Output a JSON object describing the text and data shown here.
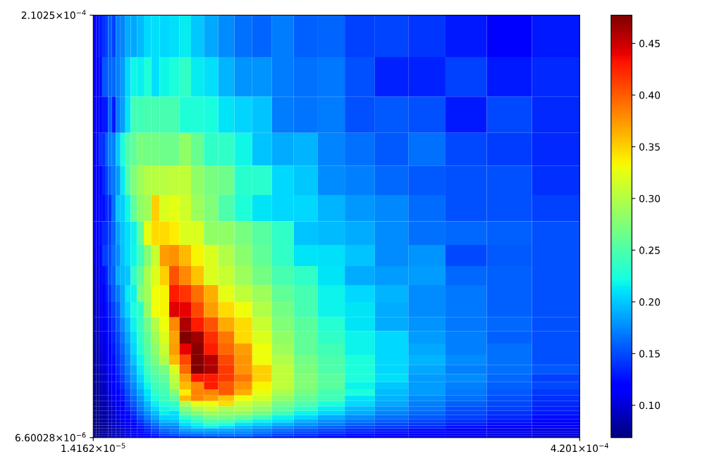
{
  "chart_data": {
    "type": "heatmap",
    "x": [
      1.54e-05,
      1.787e-05,
      2.037e-05,
      2.281e-05,
      2.517e-05,
      2.811e-05,
      3.134e-05,
      3.478e-05,
      3.881e-05,
      4.302e-05,
      4.781e-05,
      5.34e-05,
      5.929e-05,
      6.576e-05,
      7.341e-05,
      8.164e-05,
      9.067e-05,
      0.00010088,
      0.00011215,
      0.00012489,
      0.00013901,
      0.0001546,
      0.00017195,
      0.00019107,
      0.00021216,
      0.00023599,
      0.00026246,
      0.00029179,
      0.00032444,
      0.00036062,
      0.00039992
    ],
    "y": [
      0.00020004,
      0.0001801,
      0.00016178,
      0.00014521,
      0.00013028,
      0.00011688,
      0.00010483,
      9.414e-05,
      8.447e-05,
      7.582e-05,
      6.809e-05,
      6.113e-05,
      5.478e-05,
      4.914e-05,
      4.4e-05,
      3.936e-05,
      3.524e-05,
      3.151e-05,
      2.834e-05,
      2.55e-05,
      2.291e-05,
      2.053e-05,
      1.838e-05,
      1.646e-05,
      1.471e-05,
      1.312e-05,
      1.169e-05,
      1.04e-05,
      9.22e-06,
      8.13e-06,
      7.11e-06
    ],
    "cells": [
      [
        0.117,
        0.126,
        0.13,
        0.14,
        0.146,
        0.159,
        0.146,
        0.171,
        0.174,
        0.19,
        0.187,
        0.196,
        0.206,
        0.21,
        0.206,
        0.21,
        0.214,
        0.2,
        0.188,
        0.177,
        0.165,
        0.16,
        0.17,
        0.159,
        0.16,
        0.146,
        0.148,
        0.141,
        0.13,
        0.117,
        0.13
      ],
      [
        0.117,
        0.12,
        0.126,
        0.155,
        0.155,
        0.162,
        0.162,
        0.171,
        0.183,
        0.206,
        0.22,
        0.216,
        0.226,
        0.21,
        0.22,
        0.226,
        0.235,
        0.214,
        0.21,
        0.192,
        0.18,
        0.18,
        0.17,
        0.165,
        0.168,
        0.153,
        0.133,
        0.133,
        0.146,
        0.13,
        0.136
      ],
      [
        0.113,
        0.115,
        0.12,
        0.13,
        0.13,
        0.16,
        0.13,
        0.17,
        0.185,
        0.212,
        0.245,
        0.243,
        0.246,
        0.246,
        0.246,
        0.246,
        0.228,
        0.228,
        0.224,
        0.212,
        0.205,
        0.198,
        0.17,
        0.167,
        0.17,
        0.152,
        0.155,
        0.152,
        0.13,
        0.15,
        0.136
      ],
      [
        0.117,
        0.126,
        0.14,
        0.14,
        0.159,
        0.171,
        0.171,
        0.2,
        0.226,
        0.25,
        0.26,
        0.272,
        0.269,
        0.269,
        0.266,
        0.266,
        0.283,
        0.262,
        0.235,
        0.235,
        0.22,
        0.198,
        0.19,
        0.193,
        0.173,
        0.166,
        0.155,
        0.165,
        0.15,
        0.145,
        0.136
      ],
      [
        0.113,
        0.116,
        0.12,
        0.135,
        0.146,
        0.16,
        0.168,
        0.183,
        0.214,
        0.25,
        0.275,
        0.29,
        0.3,
        0.303,
        0.303,
        0.306,
        0.306,
        0.284,
        0.27,
        0.266,
        0.232,
        0.232,
        0.206,
        0.2,
        0.177,
        0.171,
        0.162,
        0.155,
        0.152,
        0.152,
        0.14
      ],
      [
        0.113,
        0.115,
        0.125,
        0.125,
        0.138,
        0.138,
        0.165,
        0.2,
        0.203,
        0.22,
        0.26,
        0.283,
        0.29,
        0.35,
        0.32,
        0.325,
        0.313,
        0.29,
        0.275,
        0.25,
        0.228,
        0.212,
        0.206,
        0.206,
        0.193,
        0.182,
        0.175,
        0.163,
        0.152,
        0.152,
        0.146
      ],
      [
        0.113,
        0.115,
        0.125,
        0.138,
        0.138,
        0.146,
        0.16,
        0.185,
        0.2,
        0.21,
        0.218,
        0.26,
        0.326,
        0.345,
        0.345,
        0.338,
        0.32,
        0.32,
        0.283,
        0.283,
        0.27,
        0.255,
        0.236,
        0.198,
        0.196,
        0.19,
        0.177,
        0.165,
        0.162,
        0.159,
        0.152
      ],
      [
        0.105,
        0.113,
        0.12,
        0.146,
        0.146,
        0.15,
        0.165,
        0.177,
        0.198,
        0.21,
        0.22,
        0.243,
        0.275,
        0.31,
        0.373,
        0.378,
        0.36,
        0.335,
        0.32,
        0.3,
        0.28,
        0.26,
        0.236,
        0.212,
        0.21,
        0.198,
        0.177,
        0.18,
        0.15,
        0.155,
        0.152
      ],
      [
        0.097,
        0.106,
        0.115,
        0.126,
        0.133,
        0.152,
        0.159,
        0.19,
        0.196,
        0.2,
        0.236,
        0.26,
        0.295,
        0.32,
        0.35,
        0.405,
        0.38,
        0.355,
        0.32,
        0.31,
        0.29,
        0.269,
        0.246,
        0.236,
        0.212,
        0.19,
        0.183,
        0.183,
        0.162,
        0.159,
        0.152
      ],
      [
        0.095,
        0.103,
        0.11,
        0.12,
        0.13,
        0.14,
        0.155,
        0.17,
        0.19,
        0.214,
        0.218,
        0.275,
        0.29,
        0.33,
        0.335,
        0.428,
        0.418,
        0.392,
        0.365,
        0.325,
        0.306,
        0.29,
        0.26,
        0.246,
        0.218,
        0.206,
        0.193,
        0.177,
        0.168,
        0.159,
        0.152
      ],
      [
        0.091,
        0.1,
        0.106,
        0.115,
        0.126,
        0.133,
        0.146,
        0.159,
        0.19,
        0.206,
        0.226,
        0.236,
        0.283,
        0.33,
        0.335,
        0.443,
        0.44,
        0.41,
        0.373,
        0.345,
        0.33,
        0.3,
        0.269,
        0.246,
        0.218,
        0.212,
        0.19,
        0.177,
        0.168,
        0.159,
        0.152
      ],
      [
        0.088,
        0.097,
        0.103,
        0.112,
        0.12,
        0.13,
        0.14,
        0.155,
        0.177,
        0.196,
        0.218,
        0.24,
        0.266,
        0.3,
        0.33,
        0.38,
        0.46,
        0.428,
        0.405,
        0.366,
        0.345,
        0.31,
        0.275,
        0.256,
        0.23,
        0.212,
        0.19,
        0.18,
        0.168,
        0.162,
        0.152
      ],
      [
        0.085,
        0.094,
        0.1,
        0.11,
        0.115,
        0.125,
        0.135,
        0.148,
        0.168,
        0.19,
        0.212,
        0.236,
        0.26,
        0.29,
        0.32,
        0.37,
        0.477,
        0.465,
        0.42,
        0.388,
        0.345,
        0.32,
        0.283,
        0.26,
        0.236,
        0.218,
        0.206,
        0.183,
        0.171,
        0.159,
        0.152
      ],
      [
        0.083,
        0.09,
        0.097,
        0.106,
        0.113,
        0.12,
        0.13,
        0.143,
        0.162,
        0.182,
        0.206,
        0.23,
        0.255,
        0.28,
        0.31,
        0.373,
        0.44,
        0.473,
        0.428,
        0.395,
        0.373,
        0.33,
        0.29,
        0.26,
        0.243,
        0.218,
        0.206,
        0.187,
        0.171,
        0.165,
        0.152
      ],
      [
        0.08,
        0.088,
        0.094,
        0.103,
        0.11,
        0.117,
        0.126,
        0.14,
        0.155,
        0.177,
        0.2,
        0.22,
        0.25,
        0.27,
        0.3,
        0.36,
        0.41,
        0.475,
        0.458,
        0.41,
        0.376,
        0.33,
        0.3,
        0.269,
        0.25,
        0.226,
        0.206,
        0.193,
        0.177,
        0.165,
        0.152
      ],
      [
        0.078,
        0.085,
        0.091,
        0.1,
        0.106,
        0.114,
        0.122,
        0.136,
        0.152,
        0.171,
        0.19,
        0.214,
        0.24,
        0.26,
        0.27,
        0.32,
        0.395,
        0.477,
        0.46,
        0.416,
        0.376,
        0.35,
        0.306,
        0.272,
        0.25,
        0.226,
        0.206,
        0.187,
        0.171,
        0.165,
        0.155
      ],
      [
        0.077,
        0.083,
        0.088,
        0.097,
        0.103,
        0.11,
        0.118,
        0.13,
        0.146,
        0.165,
        0.185,
        0.206,
        0.23,
        0.25,
        0.26,
        0.306,
        0.373,
        0.43,
        0.428,
        0.416,
        0.388,
        0.35,
        0.306,
        0.275,
        0.256,
        0.226,
        0.21,
        0.183,
        0.177,
        0.162,
        0.146
      ],
      [
        0.076,
        0.081,
        0.086,
        0.094,
        0.1,
        0.106,
        0.115,
        0.126,
        0.14,
        0.159,
        0.177,
        0.198,
        0.22,
        0.243,
        0.25,
        0.3,
        0.36,
        0.38,
        0.428,
        0.402,
        0.376,
        0.335,
        0.306,
        0.275,
        0.256,
        0.218,
        0.2,
        0.183,
        0.171,
        0.159,
        0.149
      ],
      [
        0.075,
        0.08,
        0.084,
        0.091,
        0.097,
        0.103,
        0.112,
        0.12,
        0.133,
        0.152,
        0.17,
        0.19,
        0.212,
        0.236,
        0.245,
        0.275,
        0.337,
        0.384,
        0.384,
        0.402,
        0.366,
        0.326,
        0.295,
        0.269,
        0.246,
        0.226,
        0.196,
        0.183,
        0.168,
        0.155,
        0.143
      ],
      [
        0.074,
        0.078,
        0.083,
        0.089,
        0.094,
        0.1,
        0.108,
        0.116,
        0.128,
        0.146,
        0.162,
        0.182,
        0.205,
        0.226,
        0.24,
        0.26,
        0.36,
        0.382,
        0.373,
        0.355,
        0.33,
        0.316,
        0.283,
        0.26,
        0.243,
        0.212,
        0.193,
        0.177,
        0.165,
        0.152,
        0.14
      ],
      [
        0.073,
        0.077,
        0.081,
        0.087,
        0.091,
        0.097,
        0.104,
        0.113,
        0.122,
        0.14,
        0.155,
        0.175,
        0.196,
        0.216,
        0.23,
        0.236,
        0.3,
        0.326,
        0.33,
        0.345,
        0.31,
        0.3,
        0.269,
        0.25,
        0.226,
        0.206,
        0.187,
        0.171,
        0.159,
        0.149,
        0.136
      ],
      [
        0.072,
        0.076,
        0.08,
        0.085,
        0.089,
        0.094,
        0.1,
        0.11,
        0.117,
        0.133,
        0.148,
        0.168,
        0.187,
        0.206,
        0.22,
        0.226,
        0.275,
        0.3,
        0.31,
        0.295,
        0.3,
        0.283,
        0.256,
        0.236,
        0.214,
        0.196,
        0.18,
        0.168,
        0.152,
        0.146,
        0.133
      ],
      [
        0.072,
        0.075,
        0.079,
        0.083,
        0.087,
        0.092,
        0.097,
        0.106,
        0.114,
        0.126,
        0.14,
        0.16,
        0.178,
        0.196,
        0.216,
        0.21,
        0.26,
        0.275,
        0.29,
        0.283,
        0.283,
        0.269,
        0.243,
        0.218,
        0.206,
        0.19,
        0.174,
        0.162,
        0.149,
        0.14,
        0.13
      ],
      [
        0.071,
        0.074,
        0.078,
        0.082,
        0.085,
        0.09,
        0.095,
        0.103,
        0.112,
        0.12,
        0.133,
        0.152,
        0.17,
        0.187,
        0.205,
        0.206,
        0.236,
        0.25,
        0.269,
        0.269,
        0.26,
        0.243,
        0.218,
        0.206,
        0.19,
        0.177,
        0.165,
        0.155,
        0.146,
        0.136,
        0.126
      ],
      [
        0.071,
        0.074,
        0.077,
        0.081,
        0.084,
        0.088,
        0.093,
        0.1,
        0.11,
        0.116,
        0.126,
        0.143,
        0.16,
        0.177,
        0.195,
        0.198,
        0.218,
        0.236,
        0.25,
        0.25,
        0.236,
        0.218,
        0.21,
        0.193,
        0.18,
        0.168,
        0.159,
        0.149,
        0.14,
        0.13,
        0.122
      ],
      [
        0.07,
        0.073,
        0.076,
        0.08,
        0.083,
        0.087,
        0.091,
        0.097,
        0.106,
        0.113,
        0.12,
        0.135,
        0.15,
        0.166,
        0.183,
        0.185,
        0.21,
        0.218,
        0.236,
        0.226,
        0.212,
        0.203,
        0.193,
        0.18,
        0.171,
        0.159,
        0.149,
        0.143,
        0.133,
        0.126,
        0.117
      ],
      [
        0.07,
        0.072,
        0.075,
        0.079,
        0.082,
        0.085,
        0.09,
        0.095,
        0.103,
        0.11,
        0.116,
        0.128,
        0.142,
        0.156,
        0.172,
        0.171,
        0.196,
        0.21,
        0.218,
        0.21,
        0.196,
        0.187,
        0.177,
        0.168,
        0.159,
        0.149,
        0.143,
        0.136,
        0.126,
        0.117,
        0.11
      ],
      [
        0.07,
        0.072,
        0.075,
        0.078,
        0.081,
        0.084,
        0.088,
        0.093,
        0.1,
        0.107,
        0.113,
        0.122,
        0.135,
        0.148,
        0.162,
        0.168,
        0.185,
        0.19,
        0.19,
        0.187,
        0.183,
        0.174,
        0.165,
        0.155,
        0.149,
        0.14,
        0.133,
        0.126,
        0.117,
        0.11,
        0.106
      ],
      [
        0.069,
        0.071,
        0.074,
        0.077,
        0.08,
        0.083,
        0.087,
        0.091,
        0.097,
        0.104,
        0.11,
        0.117,
        0.128,
        0.14,
        0.153,
        0.162,
        0.172,
        0.176,
        0.176,
        0.176,
        0.174,
        0.165,
        0.155,
        0.146,
        0.14,
        0.133,
        0.126,
        0.117,
        0.11,
        0.106,
        0.103
      ],
      [
        0.069,
        0.071,
        0.073,
        0.076,
        0.079,
        0.082,
        0.086,
        0.09,
        0.095,
        0.101,
        0.107,
        0.113,
        0.122,
        0.133,
        0.145,
        0.152,
        0.16,
        0.162,
        0.165,
        0.165,
        0.165,
        0.155,
        0.146,
        0.14,
        0.133,
        0.126,
        0.117,
        0.11,
        0.106,
        0.103,
        0.1
      ],
      [
        0.069,
        0.07,
        0.073,
        0.076,
        0.078,
        0.081,
        0.085,
        0.089,
        0.093,
        0.099,
        0.104,
        0.11,
        0.117,
        0.127,
        0.138,
        0.14,
        0.145,
        0.148,
        0.152,
        0.155,
        0.155,
        0.146,
        0.14,
        0.133,
        0.126,
        0.117,
        0.11,
        0.106,
        0.103,
        0.097,
        0.094
      ]
    ],
    "clim": [
      0.0687,
      0.4773
    ],
    "cticks": [
      {
        "value": 0.1,
        "label": "0.10"
      },
      0.15,
      {
        "value": 0.2,
        "label": "0.20"
      },
      0.25,
      {
        "value": 0.3,
        "label": "0.30"
      },
      0.35,
      {
        "value": 0.4,
        "label": "0.40"
      },
      0.45
    ],
    "xlim": [
      1.4162e-05,
      0.0004201
    ],
    "ylim": [
      6.60028e-06,
      0.00021025
    ],
    "xticks": [
      {
        "value": 1.4162e-05,
        "label": "1.4162×10$^{−5}$"
      },
      {
        "value": 0.0004201,
        "label": "4.201×10$^{−4}$"
      }
    ],
    "yticks": [
      {
        "value": 6.60028e-06,
        "label": "6.60028×10$^{−6}$"
      },
      {
        "value": 0.00021025,
        "label": "2.1025×10$^{−4}$"
      }
    ]
  }
}
